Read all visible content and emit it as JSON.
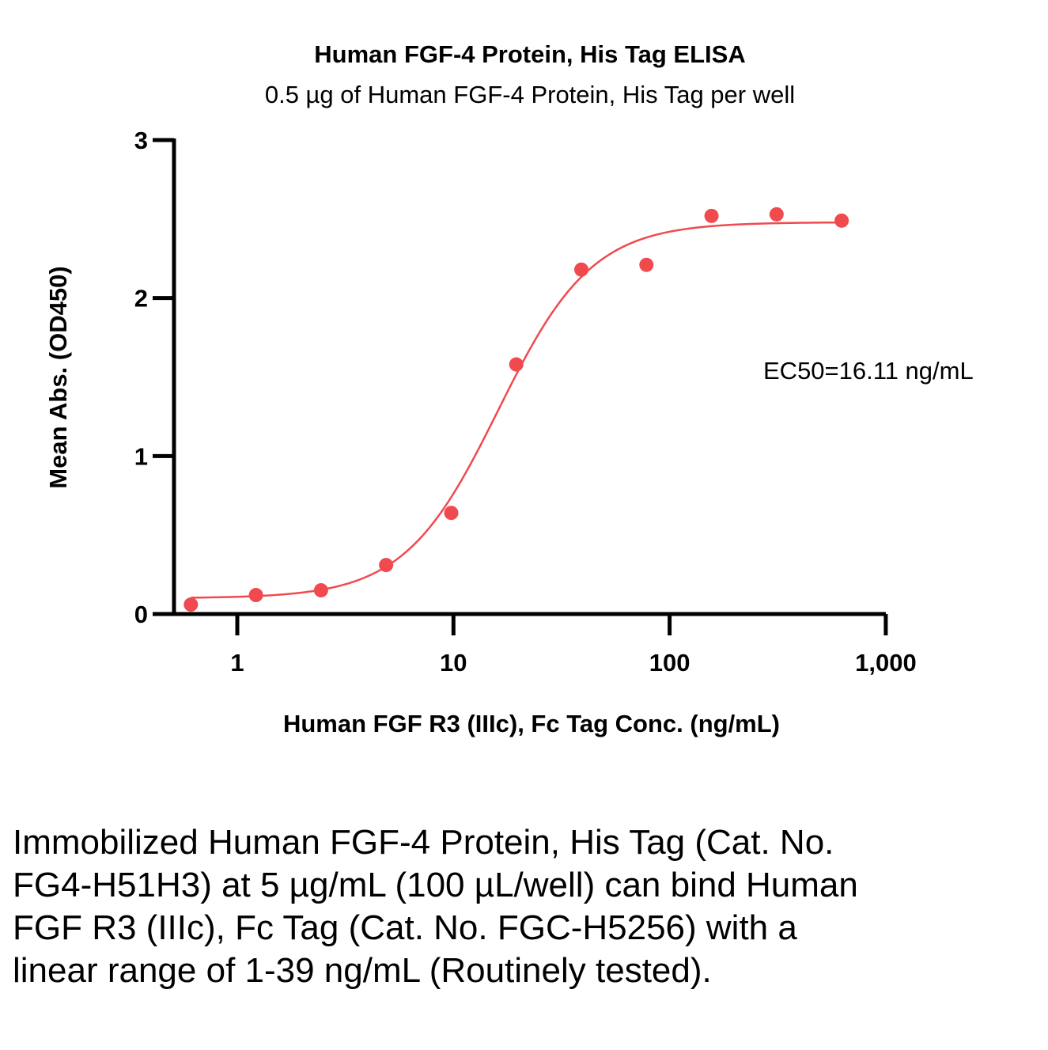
{
  "chart_data": {
    "type": "scatter",
    "title": "Human FGF-4 Protein, His Tag ELISA",
    "subtitle": "0.5 µg of Human FGF-4 Protein, His Tag per well",
    "xlabel": "Human FGF R3 (IIIc), Fc Tag Conc. (ng/mL)",
    "ylabel": "Mean Abs. (OD450)",
    "x_scale": "log",
    "xlim": [
      0.5,
      1000
    ],
    "ylim": [
      0,
      3
    ],
    "x_ticks": [
      1,
      10,
      100,
      1000
    ],
    "x_tick_labels": [
      "1",
      "10",
      "100",
      "1,000"
    ],
    "y_ticks": [
      0,
      1,
      2,
      3
    ],
    "y_tick_labels": [
      "0",
      "1",
      "2",
      "3"
    ],
    "grid": false,
    "series": [
      {
        "color": "#f04a4f",
        "x": [
          0.61,
          1.22,
          2.44,
          4.88,
          9.77,
          19.53,
          39.06,
          78.13,
          156.25,
          312.5,
          625
        ],
        "y": [
          0.06,
          0.12,
          0.15,
          0.31,
          0.64,
          1.58,
          2.18,
          2.21,
          2.52,
          2.53,
          2.49
        ]
      }
    ],
    "fit_curve": {
      "bottom": 0.1,
      "top": 2.48,
      "ec50": 16.11,
      "hill": 2.0
    },
    "annotations": [
      "EC50=16.11 ng/mL"
    ]
  },
  "caption": "Immobilized Human FGF-4 Protein, His Tag (Cat. No. FG4-H51H3) at 5 µg/mL (100 µL/well) can bind Human FGF R3 (IIIc), Fc Tag (Cat. No. FGC-H5256) with a linear range of 1-39 ng/mL (Routinely tested)."
}
